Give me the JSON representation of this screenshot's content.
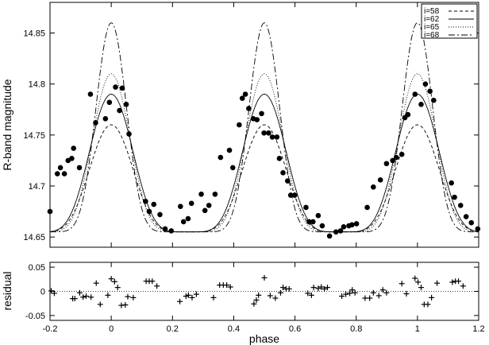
{
  "chart_data": [
    {
      "panel": "light-curve",
      "type": "line",
      "xlabel": "",
      "ylabel": "R-band magnitude",
      "xlim": [
        -0.2,
        1.2
      ],
      "ylim": [
        14.88,
        14.64
      ],
      "y_inverted": true,
      "y_ticks": [
        14.65,
        14.7,
        14.75,
        14.8,
        14.85
      ],
      "y_tick_labels": [
        "14.65",
        "14.7",
        "14.75",
        "14.8",
        "14.85"
      ],
      "legend_position": "top-right",
      "series": [
        {
          "name": "i=58",
          "style": "dashed",
          "min_depth": 14.76
        },
        {
          "name": "i=62",
          "style": "solid",
          "min_depth": 14.79
        },
        {
          "name": "i=65",
          "style": "dotted",
          "min_depth": 14.81
        },
        {
          "name": "i=68",
          "style": "dash-dot",
          "min_depth": 14.86
        }
      ],
      "max_mag": 14.655,
      "observed": {
        "x": [
          -0.2,
          -0.176,
          -0.166,
          -0.153,
          -0.141,
          -0.129,
          -0.123,
          -0.104,
          -0.068,
          -0.051,
          -0.019,
          -0.006,
          0.014,
          0.027,
          0.036,
          0.049,
          0.058,
          0.112,
          0.124,
          0.139,
          0.159,
          0.176,
          0.196,
          0.226,
          0.236,
          0.251,
          0.262,
          0.294,
          0.306,
          0.319,
          0.339,
          0.357,
          0.386,
          0.397,
          0.418,
          0.428,
          0.438,
          0.449,
          0.464,
          0.476,
          0.491,
          0.499,
          0.514,
          0.526,
          0.541,
          0.549,
          0.561,
          0.576,
          0.586,
          0.599,
          0.636,
          0.646,
          0.659,
          0.676,
          0.689,
          0.713,
          0.734,
          0.749,
          0.759,
          0.776,
          0.786,
          0.801,
          0.836,
          0.856,
          0.879,
          0.899,
          0.919,
          0.931,
          0.949,
          0.959,
          0.969,
          0.992,
          1.012,
          1.026,
          1.041,
          1.053,
          1.111,
          1.121,
          1.141,
          1.159,
          1.176,
          1.197
        ],
        "y": [
          14.675,
          14.712,
          14.718,
          14.712,
          14.725,
          14.727,
          14.737,
          14.718,
          14.79,
          14.762,
          14.766,
          14.782,
          14.797,
          14.774,
          14.796,
          14.78,
          14.751,
          14.685,
          14.675,
          14.682,
          14.672,
          14.658,
          14.656,
          14.68,
          14.665,
          14.668,
          14.683,
          14.692,
          14.676,
          14.681,
          14.692,
          14.728,
          14.735,
          14.718,
          14.76,
          14.786,
          14.79,
          14.776,
          14.766,
          14.765,
          14.771,
          14.752,
          14.752,
          14.748,
          14.748,
          14.727,
          14.713,
          14.705,
          14.691,
          14.691,
          14.679,
          14.665,
          14.665,
          14.671,
          14.661,
          14.651,
          14.655,
          14.656,
          14.66,
          14.661,
          14.662,
          14.663,
          14.679,
          14.699,
          14.706,
          14.722,
          14.725,
          14.728,
          14.731,
          14.767,
          14.77,
          14.79,
          14.78,
          14.8,
          14.793,
          14.784,
          14.703,
          14.689,
          14.681,
          14.67,
          14.664,
          14.658
        ]
      }
    },
    {
      "panel": "residuals",
      "type": "scatter",
      "xlabel": "phase",
      "ylabel": "residual",
      "xlim": [
        -0.2,
        1.2
      ],
      "ylim": [
        -0.06,
        0.06
      ],
      "x_ticks": [
        -0.2,
        0,
        0.2,
        0.4,
        0.6,
        0.8,
        1,
        1.2
      ],
      "x_tick_labels": [
        "-0.2",
        "0",
        "0.2",
        "0.4",
        "0.6",
        "0.8",
        "1",
        "1.2"
      ],
      "y_ticks": [
        -0.05,
        0,
        0.05
      ],
      "y_tick_labels": [
        "-0.05",
        "0",
        "0.05"
      ],
      "zero_line": "dotted",
      "observed": {
        "x": [
          -0.196,
          -0.186,
          -0.126,
          -0.119,
          -0.103,
          -0.092,
          -0.082,
          -0.066,
          -0.049,
          -0.036,
          -0.011,
          0.0,
          0.011,
          0.021,
          0.033,
          0.046,
          0.054,
          0.072,
          0.114,
          0.124,
          0.134,
          0.149,
          0.224,
          0.244,
          0.252,
          0.264,
          0.278,
          0.334,
          0.354,
          0.366,
          0.377,
          0.389,
          0.466,
          0.474,
          0.481,
          0.5,
          0.519,
          0.536,
          0.553,
          0.561,
          0.571,
          0.581,
          0.642,
          0.654,
          0.661,
          0.676,
          0.686,
          0.696,
          0.706,
          0.753,
          0.766,
          0.779,
          0.787,
          0.796,
          0.829,
          0.844,
          0.856,
          0.874,
          0.887,
          0.899,
          0.949,
          0.964,
          0.992,
          1.002,
          1.012,
          1.022,
          1.034,
          1.046,
          1.064,
          1.114,
          1.124,
          1.134,
          1.149
        ],
        "y": [
          0.001,
          -0.004,
          -0.015,
          -0.015,
          -0.003,
          -0.012,
          -0.01,
          -0.012,
          0.017,
          -0.027,
          -0.008,
          0.026,
          0.02,
          0.008,
          -0.029,
          -0.028,
          -0.011,
          -0.013,
          0.021,
          0.021,
          0.021,
          0.011,
          -0.021,
          -0.01,
          -0.008,
          -0.013,
          -0.006,
          -0.013,
          0.013,
          0.013,
          0.013,
          0.009,
          -0.026,
          -0.018,
          -0.008,
          0.028,
          -0.009,
          -0.014,
          -0.003,
          0.008,
          0.005,
          0.005,
          -0.004,
          -0.008,
          0.008,
          0.006,
          0.009,
          0.005,
          0.008,
          -0.01,
          -0.006,
          -0.004,
          0.003,
          -0.003,
          -0.014,
          -0.014,
          -0.003,
          -0.009,
          0.003,
          -0.003,
          0.016,
          -0.005,
          0.027,
          0.019,
          0.008,
          -0.027,
          -0.027,
          -0.013,
          0.017,
          0.019,
          0.021,
          0.021,
          0.011
        ]
      }
    }
  ]
}
